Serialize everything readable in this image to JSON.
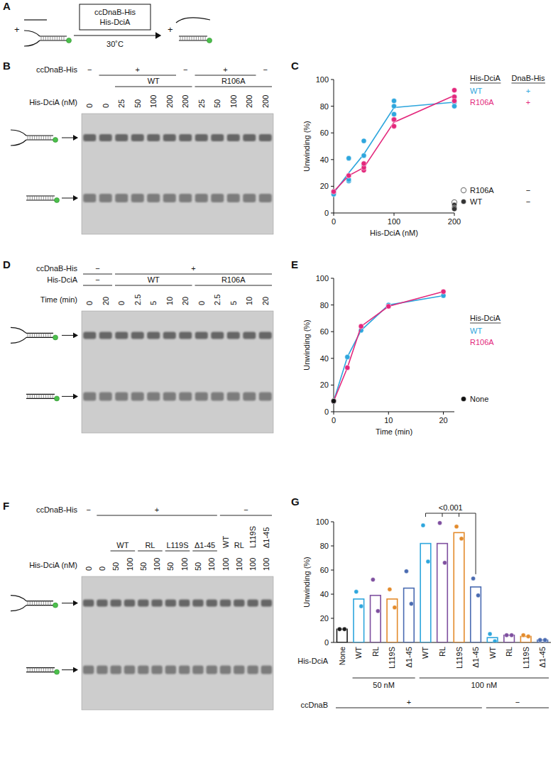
{
  "figure": {
    "panel_labels": [
      "A",
      "B",
      "C",
      "D",
      "E",
      "F",
      "G"
    ],
    "schematic": {
      "enzymes": [
        "ccDnaB-His",
        "His-DciA"
      ],
      "temperature": "30˚C",
      "plus": "+"
    },
    "gels": [
      {
        "sign_row": {
          "label": "ccDnaB-His",
          "spans": [
            {
              "text": "−",
              "start": 0,
              "end": 0
            },
            {
              "text": "+",
              "start": 1,
              "end": 5
            },
            {
              "text": "−",
              "start": 6,
              "end": 6
            },
            {
              "text": "+",
              "start": 7,
              "end": 10
            },
            {
              "text": "−",
              "start": 11,
              "end": 11
            }
          ]
        },
        "group_row": {
          "spans": [
            {
              "text": "WT",
              "start": 2,
              "end": 6
            },
            {
              "text": "R106A",
              "start": 7,
              "end": 11
            }
          ]
        },
        "lane_row": {
          "label": "His-DciA (nM)",
          "values": [
            0,
            0,
            25,
            50,
            100,
            200,
            200,
            25,
            50,
            100,
            200,
            200
          ]
        }
      },
      {
        "sign_row": {
          "label": "ccDnaB-His",
          "spans": [
            {
              "text": "−",
              "start": 0,
              "end": 1
            },
            {
              "text": "+",
              "start": 2,
              "end": 11
            }
          ]
        },
        "group_row": {
          "label": "His-DciA",
          "spans": [
            {
              "text": "−",
              "start": 0,
              "end": 1
            },
            {
              "text": "WT",
              "start": 2,
              "end": 6
            },
            {
              "text": "R106A",
              "start": 7,
              "end": 11
            }
          ]
        },
        "lane_row": {
          "label": "Time (min)",
          "values": [
            0,
            20,
            0,
            2.5,
            5,
            10,
            20,
            0,
            2.5,
            5,
            10,
            20
          ]
        }
      },
      {
        "sign_row": {
          "label": "ccDnaB-His",
          "spans": [
            {
              "text": "−",
              "start": 0,
              "end": 0
            },
            {
              "text": "+",
              "start": 1,
              "end": 9
            },
            {
              "text": "−",
              "start": 10,
              "end": 13
            }
          ]
        },
        "group_row": {
          "spans": [
            {
              "text": "WT",
              "start": 2,
              "end": 3
            },
            {
              "text": "RL",
              "start": 4,
              "end": 5
            },
            {
              "text": "L119S",
              "start": 6,
              "end": 7
            },
            {
              "text": "Δ1-45",
              "start": 8,
              "end": 9
            },
            {
              "text": "WT",
              "start": 10,
              "end": 10
            },
            {
              "text": "RL",
              "start": 11,
              "end": 11
            },
            {
              "text": "L119S",
              "start": 12,
              "end": 12
            },
            {
              "text": "Δ1-45",
              "start": 13,
              "end": 13
            }
          ]
        },
        "lane_row": {
          "label": "His-DciA (nM)",
          "values": [
            0,
            0,
            50,
            100,
            50,
            100,
            50,
            100,
            50,
            100,
            100,
            100,
            100,
            100
          ]
        }
      }
    ]
  },
  "chart_data": [
    {
      "type": "line",
      "x_label": "His-DciA (nM)",
      "y_label": "Unwinding (%)",
      "x": [
        0,
        25,
        50,
        100,
        200
      ],
      "xlim": [
        0,
        200
      ],
      "xticks": [
        0,
        100,
        200
      ],
      "ylim": [
        0,
        100
      ],
      "yticks": [
        0,
        20,
        40,
        60,
        80,
        100
      ],
      "legend": "right",
      "legend_headers": [
        "His-DciA",
        "DnaB-His"
      ],
      "series": [
        {
          "name": "WT",
          "dnab": "+",
          "type": "line",
          "marker": "circle",
          "color": "#2ea6dd",
          "values": [
            15,
            30,
            44,
            79,
            83
          ],
          "replicates": [
            [
              15,
              16,
              14
            ],
            [
              41,
              24,
              25
            ],
            [
              54,
              43,
              36
            ],
            [
              84,
              80,
              74
            ],
            [
              87,
              83,
              80
            ]
          ]
        },
        {
          "name": "R106A",
          "dnab": "+",
          "type": "line",
          "marker": "circle",
          "color": "#e3287c",
          "values": [
            16,
            28,
            34,
            68,
            88
          ],
          "replicates": [
            [
              16
            ],
            [
              28,
              28
            ],
            [
              32,
              34,
              37
            ],
            [
              65,
              70,
              70
            ],
            [
              92,
              87,
              84
            ]
          ]
        },
        {
          "name": "R106A",
          "dnab": "−",
          "type": "scatter",
          "marker": "open-circle",
          "color": "#808080",
          "x": [
            200
          ],
          "values": [
            8
          ]
        },
        {
          "name": "WT",
          "dnab": "−",
          "type": "scatter",
          "marker": "circle",
          "color": "#333333",
          "x": [
            200,
            200,
            200
          ],
          "values": [
            6,
            4,
            3
          ]
        }
      ]
    },
    {
      "type": "line",
      "x_label": "Time (min)",
      "y_label": "Unwinding (%)",
      "x": [
        0,
        2.5,
        5,
        10,
        20
      ],
      "xlim": [
        0,
        22
      ],
      "xticks": [
        0,
        10,
        20
      ],
      "ylim": [
        0,
        100
      ],
      "yticks": [
        0,
        20,
        40,
        60,
        80,
        100
      ],
      "legend": "right",
      "legend_headers": [
        "His-DciA"
      ],
      "series": [
        {
          "name": "WT",
          "type": "line",
          "marker": "circle",
          "color": "#2ea6dd",
          "values": [
            8,
            41,
            61,
            80,
            87
          ]
        },
        {
          "name": "R106A",
          "type": "line",
          "marker": "circle",
          "color": "#e3287c",
          "values": [
            8,
            33,
            64,
            79,
            90
          ]
        },
        {
          "name": "None",
          "type": "scatter",
          "marker": "circle",
          "color": "#111111",
          "x": [
            0
          ],
          "values": [
            8
          ]
        }
      ]
    },
    {
      "type": "bar",
      "x_label": "His-DciA",
      "y_label": "Unwinding (%)",
      "categories": [
        "None",
        "WT",
        "RL",
        "L119S",
        "Δ1-45",
        "WT",
        "RL",
        "L119S",
        "Δ1-45",
        "WT",
        "RL",
        "L119S",
        "Δ1-45"
      ],
      "values": [
        11,
        36,
        39,
        36,
        45,
        82,
        82,
        91,
        46,
        4,
        6,
        5,
        2
      ],
      "replicates": [
        [
          11,
          11
        ],
        [
          42,
          30
        ],
        [
          52,
          26
        ],
        [
          44,
          29
        ],
        [
          59,
          32
        ],
        [
          97,
          67
        ],
        [
          99,
          66
        ],
        [
          96,
          86
        ],
        [
          53,
          39
        ],
        [
          7,
          1
        ],
        [
          6,
          6
        ],
        [
          6,
          5
        ],
        [
          2,
          2
        ]
      ],
      "colors": [
        "#1a1a1a",
        "#2ea6dd",
        "#7e4f9f",
        "#e38b2c",
        "#4a6bb1",
        "#2ea6dd",
        "#7e4f9f",
        "#e38b2c",
        "#4a6bb1",
        "#2ea6dd",
        "#7e4f9f",
        "#e38b2c",
        "#4a6bb1"
      ],
      "ylim": [
        0,
        100
      ],
      "yticks": [
        0,
        20,
        40,
        60,
        80,
        100
      ],
      "groups": [
        {
          "label": "50 nM",
          "start": 1,
          "end": 4
        },
        {
          "label": "100 nM",
          "start": 5,
          "end": 12
        }
      ],
      "condition": {
        "label": "ccDnaB",
        "spans": [
          {
            "text": "+",
            "start": 0,
            "end": 8
          },
          {
            "text": "−",
            "start": 9,
            "end": 12
          }
        ]
      },
      "annotations": [
        {
          "text": "<0.001",
          "between": [
            [
              5,
              6,
              7
            ],
            8
          ]
        }
      ]
    }
  ]
}
